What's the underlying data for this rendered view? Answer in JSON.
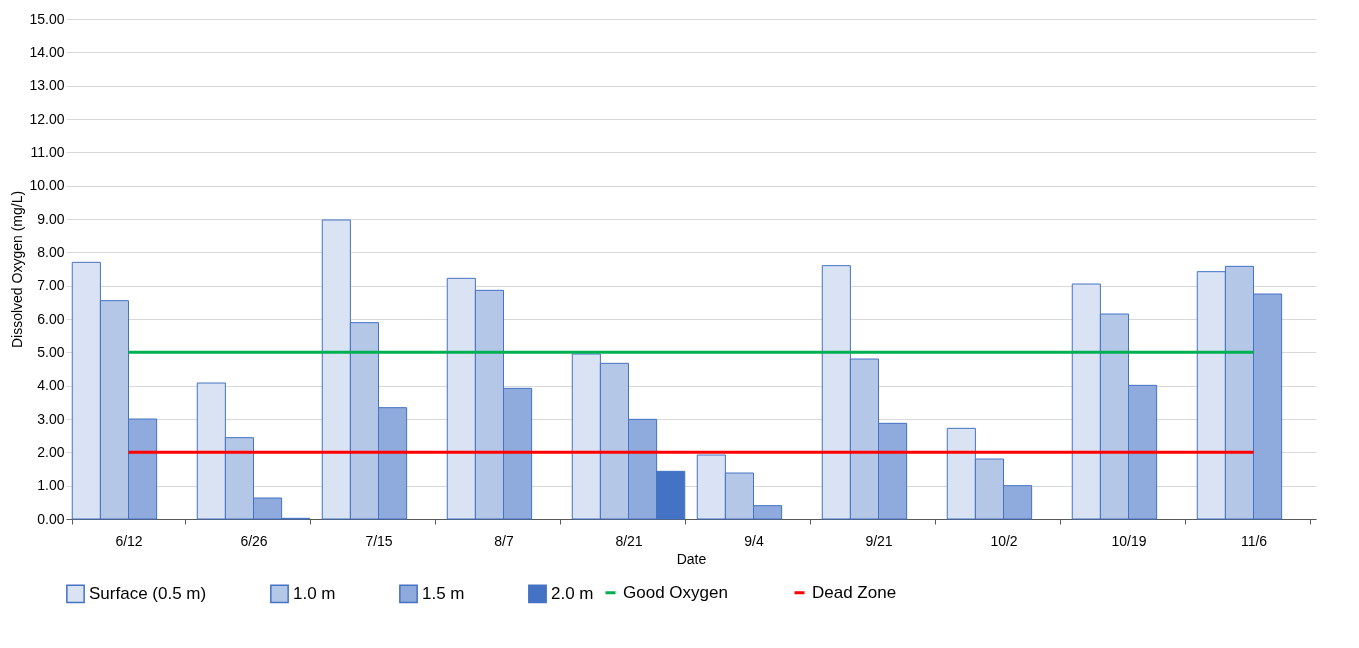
{
  "chart_data": {
    "type": "bar",
    "xlabel": "Date",
    "ylabel": "Dissolved Oxygen (mg/L)",
    "categories": [
      "6/12",
      "6/26",
      "7/15",
      "8/7",
      "8/21",
      "9/4",
      "9/21",
      "10/2",
      "10/19",
      "11/6"
    ],
    "series": [
      {
        "name": "Surface (0.5 m)",
        "color": "#dae3f3",
        "values": [
          7.7,
          4.08,
          8.97,
          7.22,
          4.95,
          1.92,
          7.6,
          2.72,
          7.05,
          7.42
        ]
      },
      {
        "name": "1.0 m",
        "color": "#b4c7e7",
        "values": [
          6.55,
          2.44,
          5.89,
          6.86,
          4.67,
          1.38,
          4.8,
          1.8,
          6.15,
          7.58
        ]
      },
      {
        "name": "1.5 m",
        "color": "#8faadc",
        "values": [
          3.0,
          0.63,
          3.34,
          3.92,
          2.99,
          0.4,
          2.87,
          1.0,
          4.01,
          6.75
        ]
      },
      {
        "name": "2.0 m",
        "color": "#4472c4",
        "values": [
          null,
          0.02,
          null,
          null,
          1.43,
          null,
          null,
          null,
          null,
          null
        ]
      },
      {
        "name": "Good Oxygen",
        "type": "line",
        "color": "#00b050",
        "values": [
          5,
          5,
          5,
          5,
          5,
          5,
          5,
          5,
          5,
          5
        ]
      },
      {
        "name": "Dead Zone",
        "type": "line",
        "color": "#ff0000",
        "values": [
          2,
          2,
          2,
          2,
          2,
          2,
          2,
          2,
          2,
          2
        ]
      }
    ],
    "ylim": [
      0,
      15
    ],
    "yticks": [
      {
        "value": 0,
        "label": "0.00"
      },
      {
        "value": 1,
        "label": "1.00"
      },
      {
        "value": 2,
        "label": "2.00"
      },
      {
        "value": 3,
        "label": "3.00"
      },
      {
        "value": 4,
        "label": "4.00"
      },
      {
        "value": 5,
        "label": "5.00"
      },
      {
        "value": 6,
        "label": "6.00"
      },
      {
        "value": 7,
        "label": "7.00"
      },
      {
        "value": 8,
        "label": "8.00"
      },
      {
        "value": 9,
        "label": "9.00"
      },
      {
        "value": 10,
        "label": "10.00"
      },
      {
        "value": 11,
        "label": "11.00"
      },
      {
        "value": 12,
        "label": "12.00"
      },
      {
        "value": 13,
        "label": "13.00"
      },
      {
        "value": 14,
        "label": "14.00"
      },
      {
        "value": 15,
        "label": "15.00"
      }
    ],
    "grid": "y",
    "legend": "bottom"
  }
}
